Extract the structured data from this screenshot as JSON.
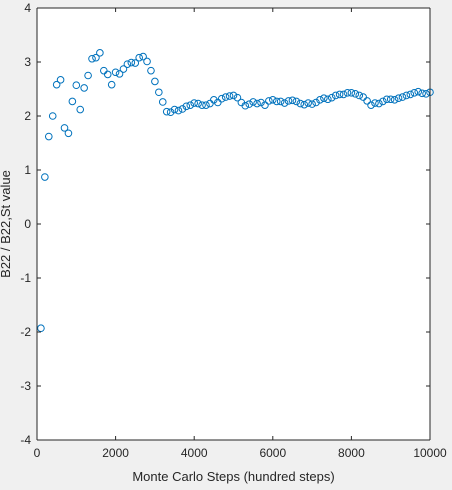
{
  "chart_data": {
    "type": "scatter",
    "title": "",
    "xlabel": "Monte Carlo Steps (hundred steps)",
    "ylabel": "B22 / B22,St value",
    "xlim": [
      0,
      10000
    ],
    "ylim": [
      -4,
      4
    ],
    "xticks": [
      0,
      2000,
      4000,
      6000,
      8000,
      10000
    ],
    "yticks": [
      -4,
      -3,
      -2,
      -1,
      0,
      1,
      2,
      3,
      4
    ],
    "grid": false,
    "legend": "none",
    "marker": "open-circle",
    "marker_color": "#0072bd",
    "background": "#ffffff",
    "figure_background": "#f0f0f0",
    "series": [
      {
        "x": [
          100,
          200,
          300,
          400,
          500,
          600,
          700,
          800,
          900,
          1000,
          1100,
          1200,
          1300,
          1400,
          1500,
          1600,
          1700,
          1800,
          1900,
          2000,
          2100,
          2200,
          2300,
          2400,
          2500,
          2600,
          2700,
          2800,
          2900,
          3000,
          3100,
          3200,
          3300,
          3400,
          3500,
          3600,
          3700,
          3800,
          3900,
          4000,
          4100,
          4200,
          4300,
          4400,
          4500,
          4600,
          4700,
          4800,
          4900,
          5000,
          5100,
          5200,
          5300,
          5400,
          5500,
          5600,
          5700,
          5800,
          5900,
          6000,
          6100,
          6200,
          6300,
          6400,
          6500,
          6600,
          6700,
          6800,
          6900,
          7000,
          7100,
          7200,
          7300,
          7400,
          7500,
          7600,
          7700,
          7800,
          7900,
          8000,
          8100,
          8200,
          8300,
          8400,
          8500,
          8600,
          8700,
          8800,
          8900,
          9000,
          9100,
          9200,
          9300,
          9400,
          9500,
          9600,
          9700,
          9800,
          9900,
          10000
        ],
        "y": [
          -1.93,
          0.87,
          1.62,
          2.0,
          2.58,
          2.67,
          1.78,
          1.68,
          2.27,
          2.57,
          2.12,
          2.52,
          2.75,
          3.06,
          3.08,
          3.17,
          2.84,
          2.77,
          2.58,
          2.81,
          2.78,
          2.87,
          2.96,
          2.99,
          2.98,
          3.08,
          3.1,
          3.01,
          2.84,
          2.64,
          2.44,
          2.26,
          2.08,
          2.07,
          2.12,
          2.1,
          2.13,
          2.18,
          2.2,
          2.24,
          2.23,
          2.2,
          2.2,
          2.23,
          2.3,
          2.25,
          2.32,
          2.35,
          2.37,
          2.38,
          2.34,
          2.25,
          2.19,
          2.22,
          2.26,
          2.23,
          2.25,
          2.2,
          2.28,
          2.3,
          2.27,
          2.27,
          2.24,
          2.28,
          2.29,
          2.27,
          2.23,
          2.21,
          2.24,
          2.22,
          2.25,
          2.3,
          2.33,
          2.31,
          2.34,
          2.38,
          2.4,
          2.4,
          2.43,
          2.43,
          2.41,
          2.38,
          2.35,
          2.28,
          2.2,
          2.24,
          2.23,
          2.27,
          2.31,
          2.31,
          2.3,
          2.33,
          2.35,
          2.38,
          2.4,
          2.43,
          2.45,
          2.42,
          2.41,
          2.44
        ]
      }
    ]
  }
}
